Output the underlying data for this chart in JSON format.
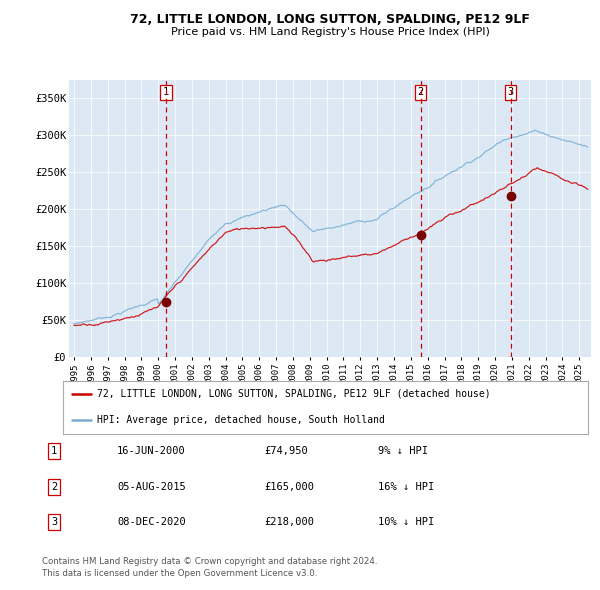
{
  "title1": "72, LITTLE LONDON, LONG SUTTON, SPALDING, PE12 9LF",
  "title2": "Price paid vs. HM Land Registry's House Price Index (HPI)",
  "bg_color": "#dce9f5",
  "red_line_color": "#cc0000",
  "blue_line_color": "#7aafd4",
  "sale_marker_color": "#7a0000",
  "vline_color": "#cc0000",
  "ylim": [
    0,
    375000
  ],
  "yticks": [
    0,
    50000,
    100000,
    150000,
    200000,
    250000,
    300000,
    350000
  ],
  "ytick_labels": [
    "£0",
    "£50K",
    "£100K",
    "£150K",
    "£200K",
    "£250K",
    "£300K",
    "£350K"
  ],
  "sales": [
    {
      "label": "1",
      "date_num": 2000.45,
      "price": 74950,
      "date_str": "16-JUN-2000",
      "price_str": "£74,950",
      "pct": "9% ↓ HPI"
    },
    {
      "label": "2",
      "date_num": 2015.58,
      "price": 165000,
      "date_str": "05-AUG-2015",
      "price_str": "£165,000",
      "pct": "16% ↓ HPI"
    },
    {
      "label": "3",
      "date_num": 2020.92,
      "price": 218000,
      "date_str": "08-DEC-2020",
      "price_str": "£218,000",
      "pct": "10% ↓ HPI"
    }
  ],
  "legend_label_red": "72, LITTLE LONDON, LONG SUTTON, SPALDING, PE12 9LF (detached house)",
  "legend_label_blue": "HPI: Average price, detached house, South Holland",
  "footer1": "Contains HM Land Registry data © Crown copyright and database right 2024.",
  "footer2": "This data is licensed under the Open Government Licence v3.0."
}
